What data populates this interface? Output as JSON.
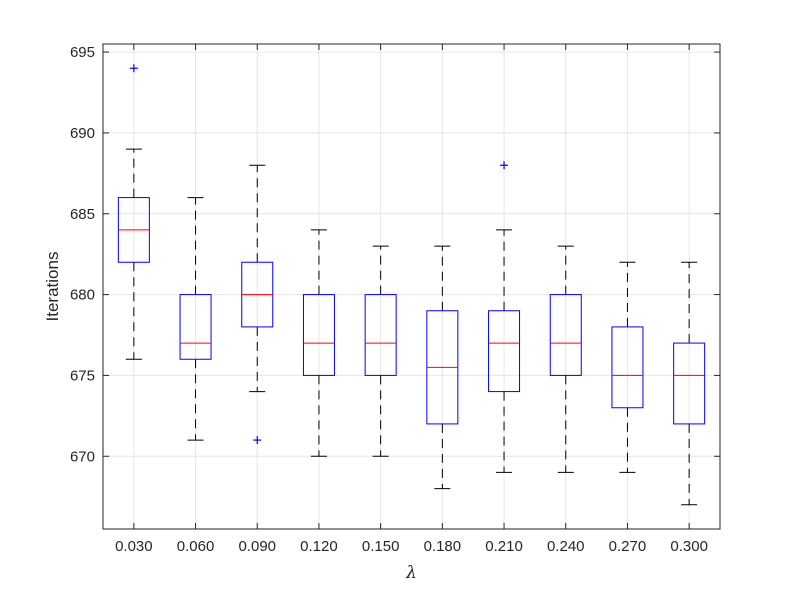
{
  "chart_data": {
    "type": "box",
    "xlabel": "λ",
    "ylabel": "Iterations",
    "categories": [
      "0.030",
      "0.060",
      "0.090",
      "0.120",
      "0.150",
      "0.180",
      "0.210",
      "0.240",
      "0.270",
      "0.300"
    ],
    "boxes": [
      {
        "whisker_low": 676,
        "q1": 682,
        "median": 684,
        "q3": 686,
        "whisker_high": 689,
        "outliers": [
          694
        ]
      },
      {
        "whisker_low": 671,
        "q1": 676,
        "median": 677,
        "q3": 680,
        "whisker_high": 686,
        "outliers": []
      },
      {
        "whisker_low": 674,
        "q1": 678,
        "median": 680,
        "q3": 682,
        "whisker_high": 688,
        "outliers": [
          671
        ]
      },
      {
        "whisker_low": 670,
        "q1": 675,
        "median": 677,
        "q3": 680,
        "whisker_high": 684,
        "outliers": []
      },
      {
        "whisker_low": 670,
        "q1": 675,
        "median": 677,
        "q3": 680,
        "whisker_high": 683,
        "outliers": []
      },
      {
        "whisker_low": 668,
        "q1": 672,
        "median": 675.5,
        "q3": 679,
        "whisker_high": 683,
        "outliers": []
      },
      {
        "whisker_low": 669,
        "q1": 674,
        "median": 677,
        "q3": 679,
        "whisker_high": 684,
        "outliers": [
          688
        ]
      },
      {
        "whisker_low": 669,
        "q1": 675,
        "median": 677,
        "q3": 680,
        "whisker_high": 683,
        "outliers": []
      },
      {
        "whisker_low": 669,
        "q1": 673,
        "median": 675,
        "q3": 678,
        "whisker_high": 682,
        "outliers": []
      },
      {
        "whisker_low": 667,
        "q1": 672,
        "median": 675,
        "q3": 677,
        "whisker_high": 682,
        "outliers": []
      }
    ],
    "ylim": [
      665.5,
      695.5
    ],
    "yticks": [
      670,
      675,
      680,
      685,
      690,
      695
    ],
    "grid": true,
    "colors": {
      "box": "#0000ff",
      "median": "#ff0000",
      "whisker": "#000000",
      "outlier": "#0000ff",
      "grid": "#e6e6e6",
      "axes": "#262626"
    }
  }
}
